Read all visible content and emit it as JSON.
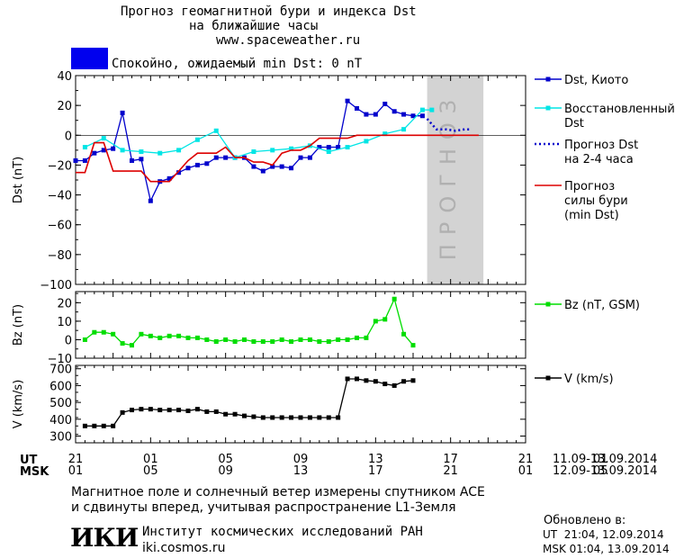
{
  "header": {
    "title_line1": "Прогноз геомагнитной бури и индекса Dst",
    "title_line2": "на ближайшие часы",
    "site": "www.spaceweather.ru"
  },
  "status": {
    "color": "#0000ee",
    "text": "Спокойно, ожидаемый min Dst: 0 nT"
  },
  "footer": {
    "ut_label": "UT",
    "msk_label": "MSK",
    "ut_range": "11.09-13.09.2014",
    "msk_range": "12.09-13.09.2014",
    "note_line1": "Магнитное поле и солнечный ветер измерены спутником ACE",
    "note_line2": "и сдвинуты вперед, учитывая распространение L1-Земля",
    "institute": "Институт космических исследований РАН",
    "institute_site": "iki.cosmos.ru",
    "logo_text": "ИКИ",
    "updated_label": "Обновлено в:",
    "updated_ut": "UT  21:04, 12.09.2014",
    "updated_msk": "MSK 01:04, 13.09.2014"
  },
  "chart_data": [
    {
      "type": "line",
      "panel": "dst",
      "ylabel": "Dst (nT)",
      "ylim": [
        -100,
        40
      ],
      "yticks": [
        40,
        20,
        0,
        -20,
        -40,
        -60,
        -80,
        -100
      ],
      "x_unit": "hours from 21 UT, 11.09.2014",
      "xlim": [
        0,
        48
      ],
      "forecast_band": {
        "x0": 37.5,
        "x1": 43.5,
        "label": "ПРОГНОЗ"
      },
      "series": [
        {
          "name": "Dst, Киото",
          "color": "#0000cc",
          "marker": "square",
          "x": [
            0,
            1,
            2,
            3,
            4,
            5,
            6,
            7,
            8,
            9,
            10,
            11,
            12,
            13,
            14,
            15,
            16,
            17,
            18,
            19,
            20,
            21,
            22,
            23,
            24,
            25,
            26,
            27,
            28,
            29,
            30,
            31,
            32,
            33,
            34,
            35,
            36,
            37
          ],
          "y": [
            -17,
            -17,
            -12,
            -10,
            -9,
            15,
            -17,
            -16,
            -44,
            -31,
            -29,
            -25,
            -22,
            -20,
            -19,
            -15,
            -15,
            -15,
            -15,
            -21,
            -24,
            -21,
            -21,
            -22,
            -15,
            -15,
            -8,
            -8,
            -8,
            23,
            18,
            14,
            14,
            21,
            16,
            14,
            13,
            13
          ]
        },
        {
          "name": "Восстановленный Dst",
          "color": "#00e5e5",
          "marker": "square",
          "x": [
            1,
            3,
            5,
            7,
            9,
            11,
            13,
            15,
            17,
            19,
            21,
            23,
            25,
            27,
            29,
            31,
            33,
            35,
            37,
            38
          ],
          "y": [
            -8,
            -2,
            -10,
            -11,
            -12,
            -10,
            -3,
            3,
            -15,
            -11,
            -10,
            -9,
            -7,
            -11,
            -8,
            -4,
            1,
            4,
            17,
            17
          ]
        },
        {
          "name": "Прогноз Dst на 2-4 часа",
          "color": "#0000cc",
          "style": "dotted",
          "x": [
            37.5,
            38.5,
            39.5,
            40.5,
            41.5,
            42
          ],
          "y": [
            11,
            4,
            4,
            3,
            4,
            4
          ]
        },
        {
          "name": "Прогноз силы бури (min Dst)",
          "color": "#dd0000",
          "style": "solid",
          "x": [
            0,
            1,
            2,
            3,
            4,
            5,
            6,
            7,
            8,
            9,
            10,
            11,
            12,
            13,
            14,
            15,
            16,
            17,
            18,
            19,
            20,
            21,
            22,
            23,
            24,
            25,
            26,
            27,
            28,
            29,
            30,
            31,
            32,
            33,
            34,
            35,
            36,
            37,
            38,
            39,
            40,
            41,
            42,
            43
          ],
          "y": [
            -25,
            -25,
            -5,
            -5,
            -24,
            -24,
            -24,
            -24,
            -31,
            -31,
            -31,
            -24,
            -17,
            -12,
            -12,
            -12,
            -8,
            -15,
            -15,
            -18,
            -18,
            -20,
            -12,
            -10,
            -10,
            -7,
            -2,
            -2,
            -2,
            -2,
            0,
            0,
            0,
            0,
            0,
            0,
            0,
            0,
            0,
            0,
            0,
            0,
            0,
            0
          ]
        }
      ]
    },
    {
      "type": "line",
      "panel": "bz",
      "ylabel": "Bz (nT)",
      "ylim": [
        -10,
        26
      ],
      "yticks": [
        20,
        10,
        0,
        -10
      ],
      "series": [
        {
          "name": "Bz (nT, GSM)",
          "color": "#00dd00",
          "marker": "square",
          "x": [
            1,
            2,
            3,
            4,
            5,
            6,
            7,
            8,
            9,
            10,
            11,
            12,
            13,
            14,
            15,
            16,
            17,
            18,
            19,
            20,
            21,
            22,
            23,
            24,
            25,
            26,
            27,
            28,
            29,
            30,
            31,
            32,
            33,
            34,
            35,
            36
          ],
          "y": [
            0,
            4,
            4,
            3,
            -2,
            -3,
            3,
            2,
            1,
            2,
            2,
            1,
            1,
            0,
            -1,
            0,
            -1,
            0,
            -1,
            -1,
            -1,
            0,
            -1,
            0,
            0,
            -1,
            -1,
            0,
            0,
            1,
            1,
            10,
            11,
            22,
            3,
            -3
          ]
        }
      ]
    },
    {
      "type": "line",
      "panel": "v",
      "ylabel": "V (km/s)",
      "ylim": [
        260,
        720
      ],
      "yticks": [
        700,
        600,
        500,
        400,
        300
      ],
      "series": [
        {
          "name": "V (km/s)",
          "color": "#000000",
          "marker": "square",
          "x": [
            1,
            2,
            3,
            4,
            5,
            6,
            7,
            8,
            9,
            10,
            11,
            12,
            13,
            14,
            15,
            16,
            17,
            18,
            19,
            20,
            21,
            22,
            23,
            24,
            25,
            26,
            27,
            28,
            29,
            30,
            31,
            32,
            33,
            34,
            35,
            36
          ],
          "y": [
            360,
            360,
            360,
            360,
            440,
            455,
            460,
            460,
            455,
            455,
            455,
            450,
            460,
            445,
            445,
            430,
            430,
            420,
            415,
            410,
            410,
            410,
            410,
            410,
            410,
            410,
            410,
            410,
            640,
            640,
            630,
            625,
            610,
            600,
            625,
            630
          ]
        }
      ]
    }
  ],
  "x_axis": {
    "ut_ticks": [
      "21",
      "01",
      "05",
      "09",
      "13",
      "17",
      "21",
      "01"
    ],
    "msk_ticks": [
      "01",
      "05",
      "09",
      "13",
      "17",
      "21",
      "01",
      "05"
    ]
  }
}
